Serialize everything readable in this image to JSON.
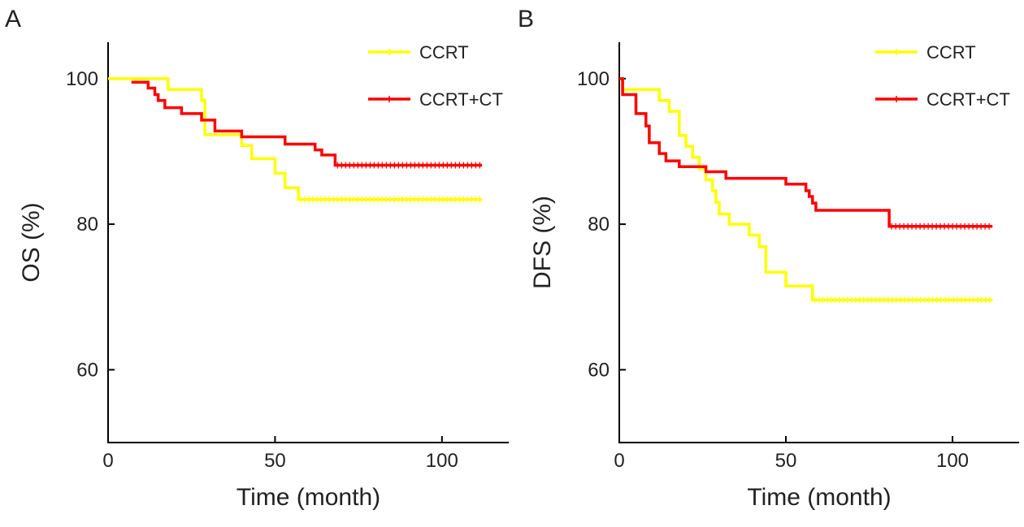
{
  "chart_data": [
    {
      "type": "line",
      "panel_label": "A",
      "xlabel": "Time (month)",
      "ylabel": "OS (%)",
      "xlim": [
        0,
        120
      ],
      "ylim": [
        50,
        105
      ],
      "xticks": [
        0,
        50,
        100
      ],
      "yticks": [
        60,
        80,
        100
      ],
      "grid": false,
      "legend_position": "top-right",
      "series": [
        {
          "name": "CCRT",
          "color": "#ffff00",
          "step": true,
          "x": [
            0,
            18,
            28,
            29,
            32,
            40,
            43,
            50,
            53,
            57,
            112
          ],
          "y": [
            100,
            98.5,
            97,
            92.3,
            92.3,
            90.8,
            89,
            87,
            85,
            83.4,
            83.4
          ]
        },
        {
          "name": "CCRT+CT",
          "color": "#ff0000",
          "step": true,
          "x": [
            7,
            12,
            14,
            15,
            17,
            22,
            28,
            32,
            40,
            53,
            62,
            64,
            68,
            112
          ],
          "y": [
            99.5,
            98.7,
            97.8,
            97,
            96,
            95.2,
            94.3,
            92.8,
            92,
            91,
            90.2,
            89.5,
            88.1,
            88.1
          ]
        }
      ]
    },
    {
      "type": "line",
      "panel_label": "B",
      "xlabel": "Time (month)",
      "ylabel": "DFS (%)",
      "xlim": [
        0,
        120
      ],
      "ylim": [
        50,
        105
      ],
      "xticks": [
        0,
        50,
        100
      ],
      "yticks": [
        60,
        80,
        100
      ],
      "grid": false,
      "legend_position": "top-right",
      "series": [
        {
          "name": "CCRT",
          "color": "#ffff00",
          "step": true,
          "x": [
            0,
            1,
            12,
            15,
            18,
            20,
            22,
            24,
            26,
            28,
            29,
            30,
            33,
            39,
            42,
            44,
            50,
            58,
            112
          ],
          "y": [
            100,
            98.5,
            97,
            95.5,
            92.2,
            90.7,
            89.2,
            87.6,
            86.1,
            84.6,
            83,
            81.4,
            80,
            78.5,
            76.9,
            73.4,
            71.5,
            69.6,
            69.6
          ]
        },
        {
          "name": "CCRT+CT",
          "color": "#ff0000",
          "step": true,
          "x": [
            0,
            1,
            5,
            8,
            9,
            12,
            14,
            18,
            26,
            32,
            50,
            56,
            57,
            58,
            59,
            81,
            112
          ],
          "y": [
            100,
            97.8,
            95.2,
            93.5,
            91.2,
            89.7,
            88.7,
            87.9,
            87.2,
            86.3,
            85.5,
            84.6,
            83.8,
            82.9,
            81.9,
            79.7,
            79.7
          ]
        }
      ]
    }
  ]
}
